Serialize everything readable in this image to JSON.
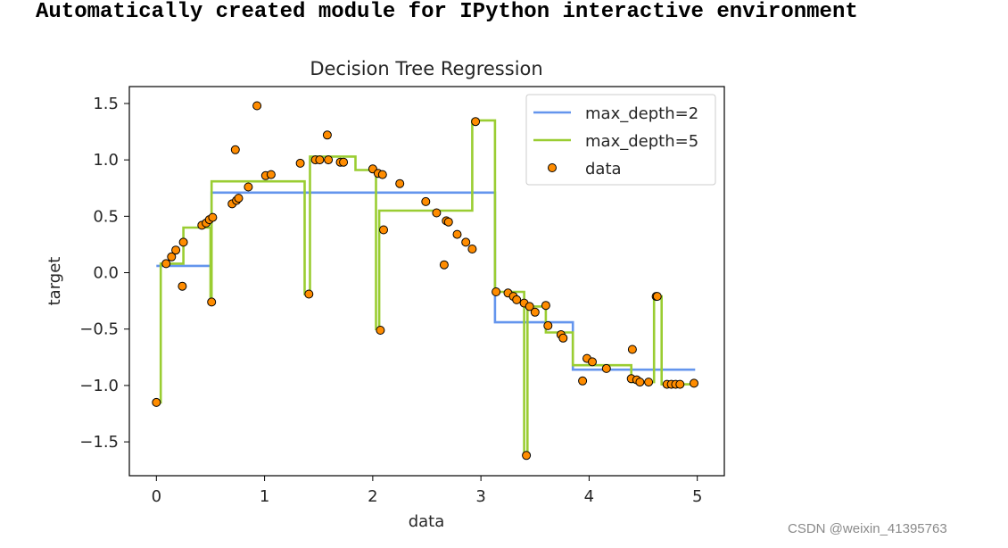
{
  "output_text": "Automatically created module for IPython interactive environment",
  "watermark": "CSDN @weixin_41395763",
  "colors": {
    "max_depth_2": "#6495ED",
    "max_depth_5": "#9ACD32",
    "data_fill": "#FF8C00",
    "data_edge": "#000000"
  },
  "chart_data": {
    "type": "line",
    "title": "Decision Tree Regression",
    "xlabel": "data",
    "ylabel": "target",
    "xlim": [
      -0.25,
      5.25
    ],
    "ylim": [
      -1.8,
      1.65
    ],
    "xticks": [
      0,
      1,
      2,
      3,
      4,
      5
    ],
    "xtick_labels": [
      "0",
      "1",
      "2",
      "3",
      "4",
      "5"
    ],
    "yticks": [
      1.5,
      1.0,
      0.5,
      0.0,
      -0.5,
      -1.0,
      -1.5
    ],
    "ytick_labels": [
      "1.5",
      "1.0",
      "0.5",
      "0.0",
      "−0.5",
      "−1.0",
      "−1.5"
    ],
    "grid": false,
    "legend": "upper right",
    "series": [
      {
        "name": "max_depth=2",
        "kind": "step",
        "color": "#6495ED",
        "x": [
          0,
          0.51,
          0.51,
          3.13,
          3.13,
          3.85,
          3.85,
          4.98
        ],
        "y": [
          0.06,
          0.06,
          0.71,
          0.71,
          -0.44,
          -0.44,
          -0.86,
          -0.86
        ]
      },
      {
        "name": "max_depth=5",
        "kind": "step",
        "color": "#9ACD32",
        "x": [
          0,
          0.04,
          0.04,
          0.25,
          0.25,
          0.5,
          0.5,
          0.51,
          0.51,
          1.37,
          1.37,
          1.42,
          1.42,
          1.84,
          1.84,
          2.03,
          2.03,
          2.06,
          2.06,
          2.92,
          2.92,
          3.13,
          3.13,
          3.4,
          3.4,
          3.43,
          3.43,
          3.6,
          3.6,
          3.85,
          3.85,
          4.39,
          4.39,
          4.6,
          4.6,
          4.67,
          4.67,
          4.98
        ],
        "y": [
          -1.15,
          -1.15,
          0.08,
          0.08,
          0.4,
          0.4,
          -0.26,
          -0.26,
          0.81,
          0.81,
          -0.19,
          -0.19,
          1.03,
          1.03,
          0.91,
          0.91,
          -0.5,
          -0.5,
          0.55,
          0.55,
          1.35,
          1.35,
          -0.17,
          -0.17,
          -1.62,
          -1.62,
          -0.3,
          -0.3,
          -0.53,
          -0.53,
          -0.82,
          -0.82,
          -0.97,
          -0.97,
          -0.21,
          -0.21,
          -0.99,
          -0.99
        ]
      },
      {
        "name": "data",
        "kind": "scatter",
        "x": [
          0.0,
          0.09,
          0.14,
          0.18,
          0.24,
          0.25,
          0.42,
          0.46,
          0.49,
          0.51,
          0.52,
          0.7,
          0.73,
          0.74,
          0.76,
          0.85,
          0.93,
          1.01,
          1.06,
          1.33,
          1.41,
          1.47,
          1.51,
          1.58,
          1.59,
          1.7,
          1.73,
          2.0,
          2.05,
          2.07,
          2.09,
          2.1,
          2.25,
          2.49,
          2.59,
          2.66,
          2.68,
          2.7,
          2.78,
          2.86,
          2.92,
          2.95,
          3.14,
          3.25,
          3.3,
          3.33,
          3.4,
          3.42,
          3.45,
          3.5,
          3.6,
          3.62,
          3.74,
          3.76,
          3.94,
          3.98,
          4.03,
          4.16,
          4.39,
          4.4,
          4.44,
          4.47,
          4.55,
          4.62,
          4.63,
          4.72,
          4.76,
          4.8,
          4.84,
          4.97
        ],
        "y": [
          -1.15,
          0.08,
          0.14,
          0.2,
          -0.12,
          0.27,
          0.42,
          0.44,
          0.47,
          -0.26,
          0.49,
          0.61,
          1.09,
          0.64,
          0.66,
          0.76,
          1.48,
          0.86,
          0.87,
          0.97,
          -0.19,
          1.0,
          1.0,
          1.22,
          1.0,
          0.98,
          0.98,
          0.92,
          0.88,
          -0.51,
          0.87,
          0.38,
          0.79,
          0.63,
          0.53,
          0.07,
          0.46,
          0.45,
          0.34,
          0.27,
          0.21,
          1.34,
          -0.17,
          -0.18,
          -0.21,
          -0.24,
          -0.27,
          -1.62,
          -0.3,
          -0.35,
          -0.29,
          -0.47,
          -0.55,
          -0.58,
          -0.96,
          -0.76,
          -0.79,
          -0.85,
          -0.94,
          -0.68,
          -0.95,
          -0.97,
          -0.97,
          -0.21,
          -0.21,
          -0.99,
          -0.99,
          -0.99,
          -0.99,
          -0.98
        ]
      }
    ]
  }
}
